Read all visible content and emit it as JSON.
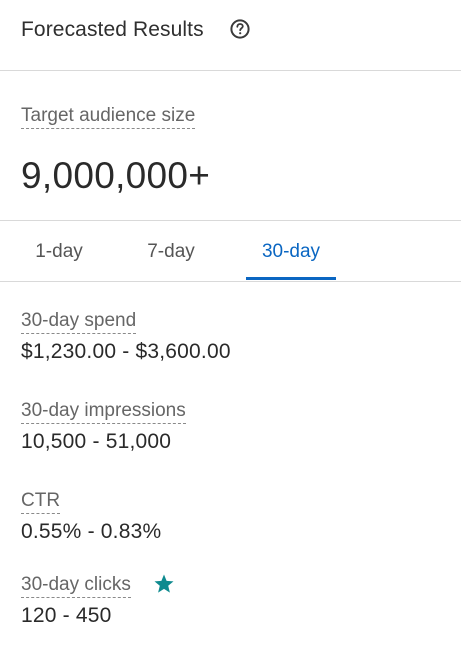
{
  "header": {
    "title": "Forecasted Results",
    "help_icon": "question-circle-icon"
  },
  "audience": {
    "label": "Target audience size",
    "value": "9,000,000+"
  },
  "tabs": [
    {
      "label": "1-day",
      "selected": false
    },
    {
      "label": "7-day",
      "selected": false
    },
    {
      "label": "30-day",
      "selected": true
    }
  ],
  "metrics": [
    {
      "label": "30-day spend",
      "value": "$1,230.00 - $3,600.00"
    },
    {
      "label": "30-day impressions",
      "value": "10,500 - 51,000"
    },
    {
      "label": "CTR",
      "value": "0.55% - 0.83%"
    },
    {
      "label": "30-day clicks",
      "value": "120 - 450",
      "icon": "star-icon"
    }
  ],
  "colors": {
    "accent": "#0a66c2",
    "star": "#0e8a8f",
    "divider": "#d9d9d9"
  }
}
